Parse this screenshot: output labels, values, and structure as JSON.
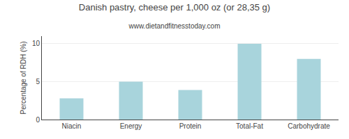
{
  "chart_data": {
    "type": "bar",
    "title": "Danish pastry, cheese per 1,000 oz (or 28,35 g)",
    "subtitle": "www.dietandfitnesstoday.com",
    "ylabel": "Percentage of RDH (%)",
    "categories": [
      "Niacin",
      "Energy",
      "Protein",
      "Total-Fat",
      "Carbohydrate"
    ],
    "values": [
      2.8,
      5.0,
      3.9,
      10.0,
      8.0
    ],
    "color": "#a8d4dc",
    "ylim": [
      0,
      11
    ],
    "yticks": [
      0,
      5,
      10
    ],
    "grid": true
  }
}
